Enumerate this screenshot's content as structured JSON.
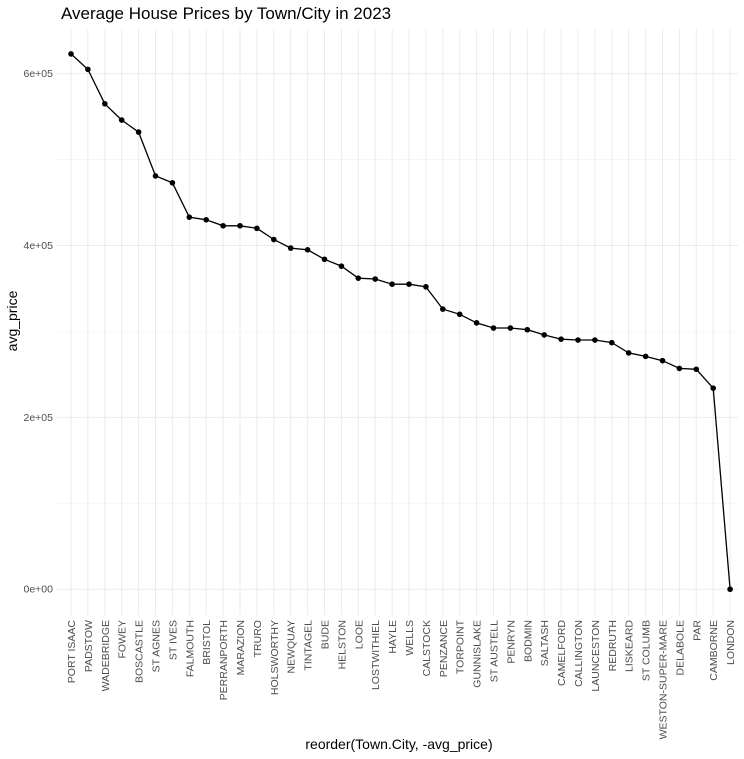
{
  "chart_data": {
    "type": "line",
    "title": "Average House Prices by Town/City in 2023",
    "xlabel": "reorder(Town.City, -avg_price)",
    "ylabel": "avg_price",
    "ylim": [
      -30000,
      652000
    ],
    "yticks": [
      0,
      200000,
      400000,
      600000
    ],
    "ytick_labels": [
      "0e+00",
      "2e+05",
      "4e+05",
      "6e+05"
    ],
    "grid": true,
    "legend": "none",
    "line_color": "#000000",
    "grid_color": "#ebebeb",
    "categories": [
      "PORT ISAAC",
      "PADSTOW",
      "WADEBRIDGE",
      "FOWEY",
      "BOSCASTLE",
      "ST AGNES",
      "ST IVES",
      "FALMOUTH",
      "BRISTOL",
      "PERRANPORTH",
      "MARAZION",
      "TRURO",
      "HOLSWORTHY",
      "NEWQUAY",
      "TINTAGEL",
      "BUDE",
      "HELSTON",
      "LOOE",
      "LOSTWITHIEL",
      "HAYLE",
      "WELLS",
      "CALSTOCK",
      "PENZANCE",
      "TORPOINT",
      "GUNNISLAKE",
      "ST AUSTELL",
      "PENRYN",
      "BODMIN",
      "SALTASH",
      "CAMELFORD",
      "CALLINGTON",
      "LAUNCESTON",
      "REDRUTH",
      "LISKEARD",
      "ST COLUMB",
      "WESTON-SUPER-MARE",
      "DELABOLE",
      "PAR",
      "CAMBORNE",
      "LONDON"
    ],
    "values": [
      623000,
      605000,
      565000,
      546000,
      532000,
      481000,
      473000,
      433000,
      430000,
      423000,
      423000,
      420000,
      407000,
      397000,
      395000,
      384000,
      376000,
      362000,
      361000,
      355000,
      355000,
      352000,
      326000,
      320000,
      310000,
      304000,
      304000,
      302000,
      296000,
      291000,
      290000,
      290000,
      287000,
      275000,
      271000,
      266000,
      257000,
      256000,
      234000,
      0
    ]
  }
}
